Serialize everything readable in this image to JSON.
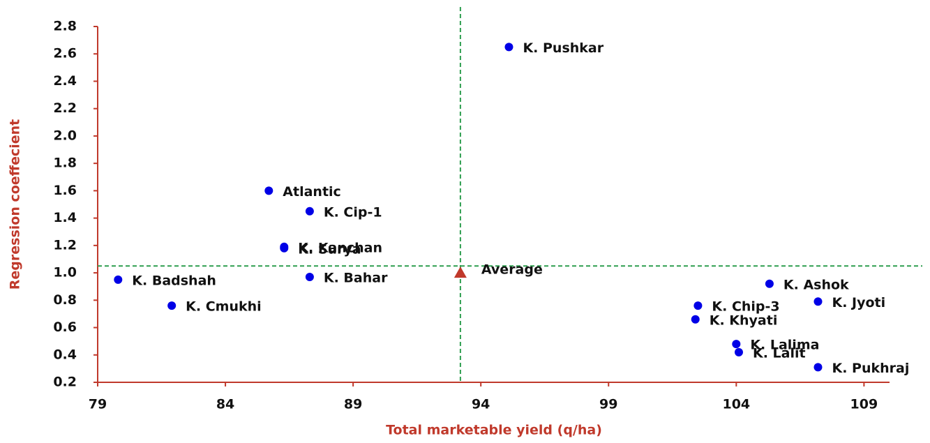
{
  "chart_data": {
    "type": "scatter",
    "x_label": "Total marketable yield (q/ha)",
    "y_label": "Regression coeffecient",
    "xlim": [
      79,
      110
    ],
    "xticks": [
      79,
      84,
      89,
      94,
      99,
      104,
      109
    ],
    "ylim": [
      0.2,
      2.8
    ],
    "yticks": [
      0.2,
      0.4,
      0.6,
      0.8,
      {
        "value": 1.0,
        "label": "1.0"
      },
      1.2,
      1.4,
      1.6,
      1.8,
      {
        "value": 2.0,
        "label": "2.0"
      },
      2.2,
      2.4,
      2.6,
      2.8
    ],
    "axis_color": "#c0392b",
    "series": [
      {
        "color": "#0000e6",
        "labels": [
          "K. Pushkar",
          "Atlantic",
          "K. Cip-1",
          "K. Kanchan",
          "K. Surya",
          "K. Badshah",
          "K. Bahar",
          "K. Cmukhi",
          "K. Ashok",
          "K. Jyoti",
          "K. Chip-3",
          "K. Khyati",
          "K. Lalima",
          "K. Lalit",
          "K. Pukhraj"
        ],
        "x": [
          95.1,
          85.7,
          87.3,
          86.3,
          86.3,
          79.8,
          87.3,
          81.9,
          105.3,
          107.2,
          102.5,
          102.4,
          104.0,
          104.1,
          107.2
        ],
        "values": [
          2.65,
          1.6,
          1.45,
          1.19,
          1.18,
          0.95,
          0.97,
          0.76,
          0.92,
          0.79,
          0.76,
          0.66,
          0.48,
          0.42,
          0.31
        ]
      }
    ],
    "average": {
      "label": "Average",
      "x": 93.2,
      "y": 1.0,
      "color": "#c0392b"
    },
    "reference_lines": {
      "x": 93.2,
      "y": 1.05,
      "color": "#2e9e4f"
    }
  }
}
